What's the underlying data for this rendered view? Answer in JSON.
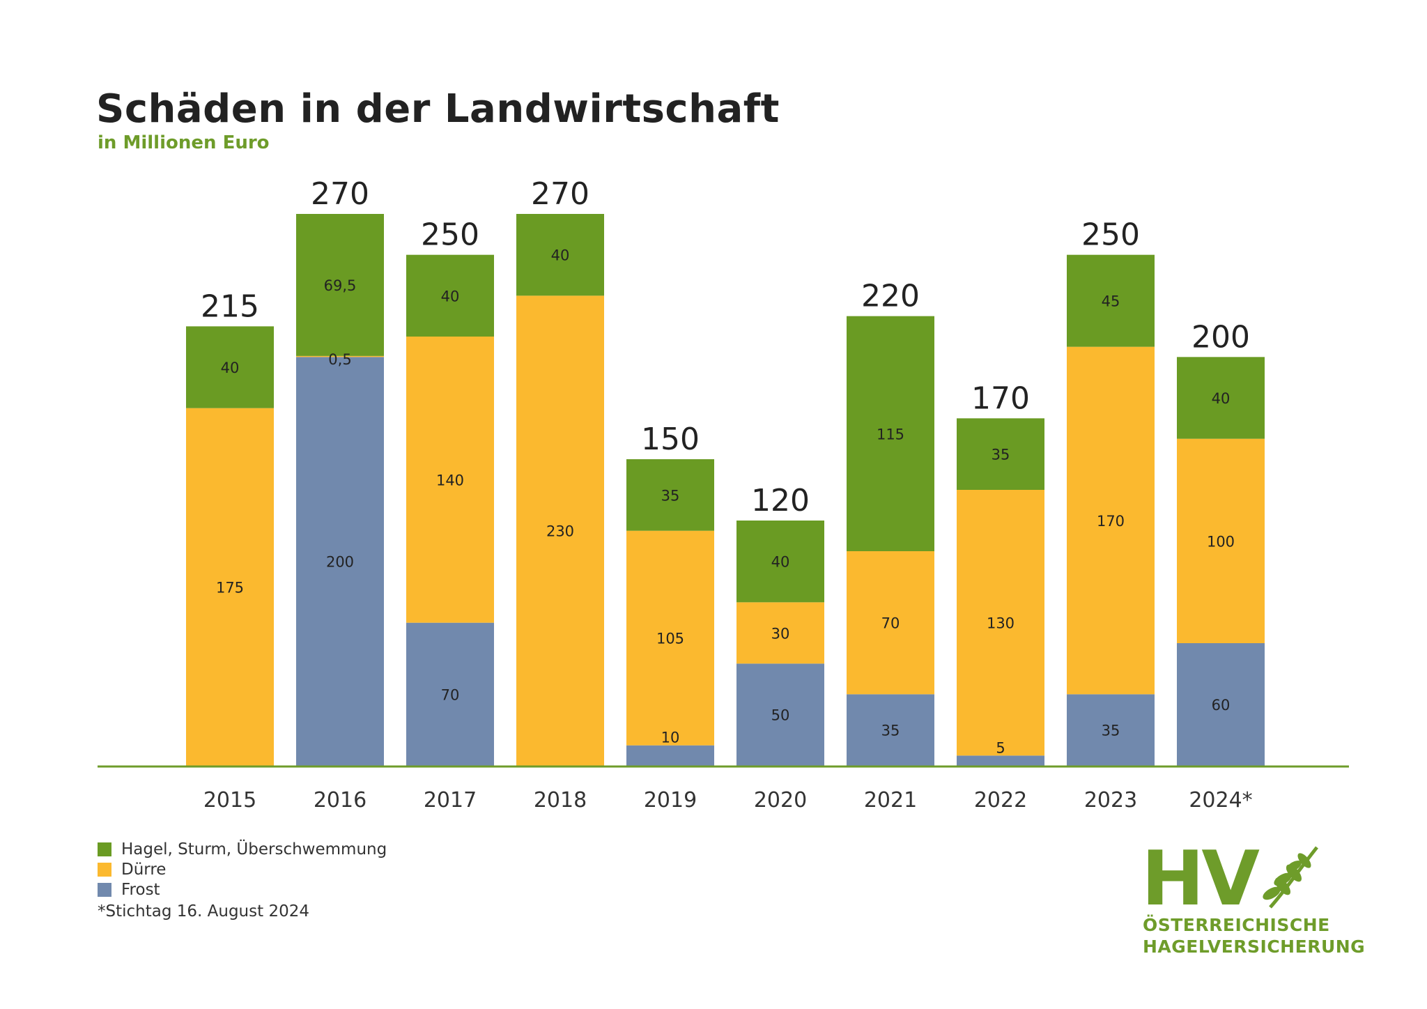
{
  "title": "Schäden in der Landwirtschaft",
  "subtitle": "in Millionen Euro",
  "colors": {
    "hagel": "#6a9b23",
    "duerre": "#fbb92f",
    "frost": "#7189ad",
    "baseline": "#6e9c2a",
    "text": "#222222"
  },
  "chart_data": {
    "type": "bar",
    "stacked": true,
    "categories": [
      "2015",
      "2016",
      "2017",
      "2018",
      "2019",
      "2020",
      "2021",
      "2022",
      "2023",
      "2024*"
    ],
    "totals": [
      215,
      270,
      250,
      270,
      150,
      120,
      220,
      170,
      250,
      200
    ],
    "series": [
      {
        "name": "Frost",
        "color": "#7189ad",
        "values": [
          0,
          200,
          70,
          0,
          10,
          50,
          35,
          5,
          35,
          60
        ],
        "labels": [
          "",
          "200",
          "70",
          "",
          "10",
          "50",
          "35",
          "5",
          "35",
          "60"
        ]
      },
      {
        "name": "Dürre",
        "color": "#fbb92f",
        "values": [
          175,
          0.5,
          140,
          230,
          105,
          30,
          70,
          130,
          170,
          100
        ],
        "labels": [
          "175",
          "0,5",
          "140",
          "230",
          "105",
          "30",
          "70",
          "130",
          "170",
          "100"
        ]
      },
      {
        "name": "Hagel, Sturm, Überschwemmung",
        "color": "#6a9b23",
        "values": [
          40,
          69.5,
          40,
          40,
          35,
          40,
          115,
          35,
          45,
          40
        ],
        "labels": [
          "40",
          "69,5",
          "40",
          "40",
          "35",
          "40",
          "115",
          "35",
          "45",
          "40"
        ]
      }
    ],
    "ylim": [
      0,
      270
    ],
    "legend_position": "bottom-left"
  },
  "legend": [
    {
      "label": "Hagel, Sturm, Überschwemmung",
      "color": "#6a9b23"
    },
    {
      "label": "Dürre",
      "color": "#fbb92f"
    },
    {
      "label": "Frost",
      "color": "#7189ad"
    }
  ],
  "footnote": "*Stichtag 16. August 2024",
  "logo": {
    "letters": "HV",
    "line1": "ÖSTERREICHISCHE",
    "line2": "HAGELVERSICHERUNG",
    "icon": "wheat-ear-icon"
  }
}
